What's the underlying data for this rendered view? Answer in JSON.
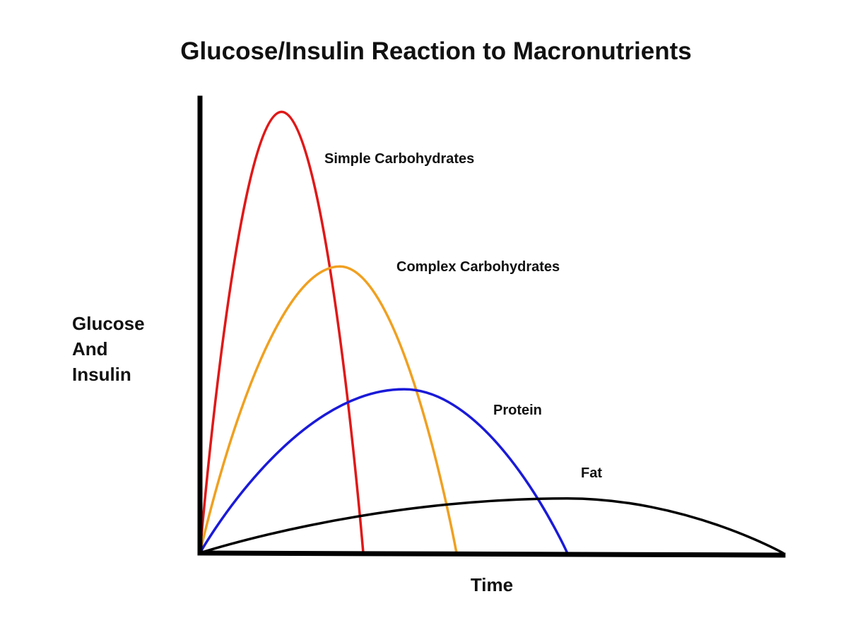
{
  "chart_data": {
    "type": "line",
    "title": "Glucose/Insulin Reaction to Macronutrients",
    "xlabel": "Time",
    "ylabel": [
      "Glucose",
      "And",
      "Insulin"
    ],
    "xlim": [
      0,
      100
    ],
    "ylim": [
      0,
      100
    ],
    "grid": false,
    "ticks": false,
    "series": [
      {
        "name": "Simple Carbohydrates",
        "color": "#e01818",
        "x": [
          0,
          14,
          28
        ],
        "y": [
          0,
          97,
          0
        ]
      },
      {
        "name": "Complex Carbohydrates",
        "color": "#f0a020",
        "x": [
          0,
          24,
          44
        ],
        "y": [
          0,
          63,
          0
        ]
      },
      {
        "name": "Protein",
        "color": "#1a1ad8",
        "x": [
          0,
          35,
          63
        ],
        "y": [
          0,
          36,
          0
        ]
      },
      {
        "name": "Fat",
        "color": "#000000",
        "x": [
          0,
          63,
          100
        ],
        "y": [
          0,
          12,
          0
        ]
      }
    ]
  }
}
